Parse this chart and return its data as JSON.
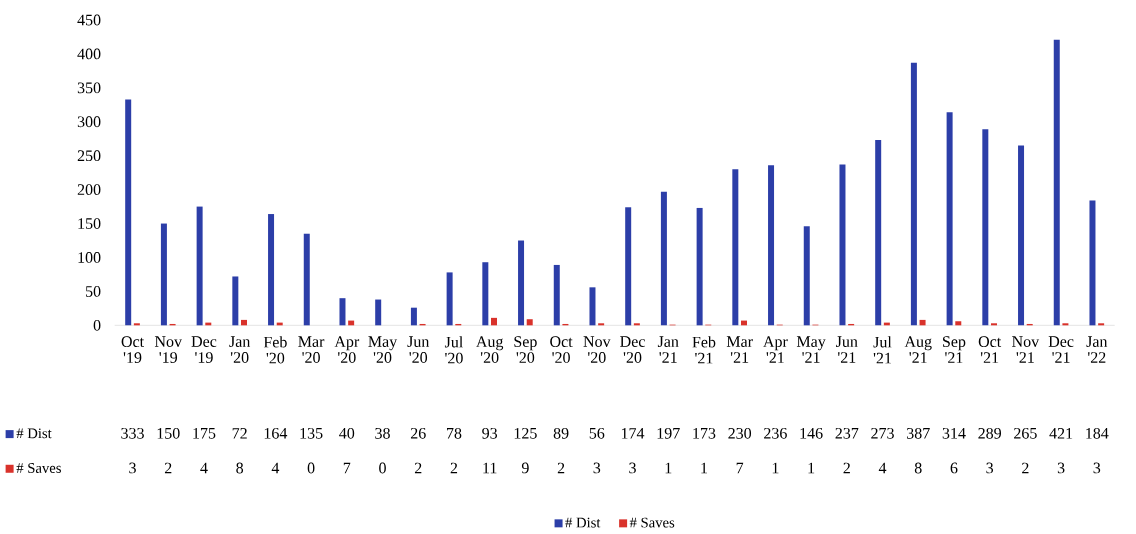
{
  "chart_data": {
    "type": "bar",
    "categories": [
      "Oct '19",
      "Nov '19",
      "Dec '19",
      "Jan '20",
      "Feb '20",
      "Mar '20",
      "Apr '20",
      "May '20",
      "Jun '20",
      "Jul '20",
      "Aug '20",
      "Sep '20",
      "Oct '20",
      "Nov '20",
      "Dec '20",
      "Jan '21",
      "Feb '21",
      "Mar '21",
      "Apr '21",
      "May '21",
      "Jun '21",
      "Jul '21",
      "Aug '21",
      "Sep '21",
      "Oct '21",
      "Nov '21",
      "Dec '21",
      "Jan '22"
    ],
    "series": [
      {
        "name": "# Dist",
        "color": "#2c3ea8",
        "values": [
          333,
          150,
          175,
          72,
          164,
          135,
          40,
          38,
          26,
          78,
          93,
          125,
          89,
          56,
          174,
          197,
          173,
          230,
          236,
          146,
          237,
          273,
          387,
          314,
          289,
          265,
          421,
          184
        ]
      },
      {
        "name": "# Saves",
        "color": "#d9322b",
        "values": [
          3,
          2,
          4,
          8,
          4,
          0,
          7,
          0,
          2,
          2,
          11,
          9,
          2,
          3,
          3,
          1,
          1,
          7,
          1,
          1,
          2,
          4,
          8,
          6,
          3,
          2,
          3,
          3
        ]
      }
    ],
    "ylim": [
      0,
      450
    ],
    "yticks": [
      0,
      50,
      100,
      150,
      200,
      250,
      300,
      350,
      400,
      450
    ],
    "data_labels": true,
    "legend": "bottom",
    "grid": false
  }
}
